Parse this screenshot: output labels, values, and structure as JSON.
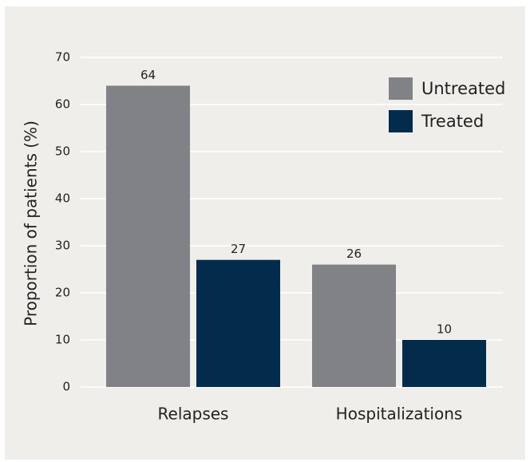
{
  "chart_data": {
    "type": "bar",
    "y_label": "Proportion of patients (%)",
    "categories": [
      "Relapses",
      "Hospitalizations"
    ],
    "series": [
      {
        "name": "Untreated",
        "color": "#818285",
        "values": [
          64,
          26
        ]
      },
      {
        "name": "Treated",
        "color": "#022b4c",
        "values": [
          27,
          10
        ]
      }
    ],
    "ylim": [
      0,
      70
    ],
    "yticks": [
      0,
      10,
      20,
      30,
      40,
      50,
      60,
      70
    ],
    "grid": true,
    "legend": "upper right"
  }
}
